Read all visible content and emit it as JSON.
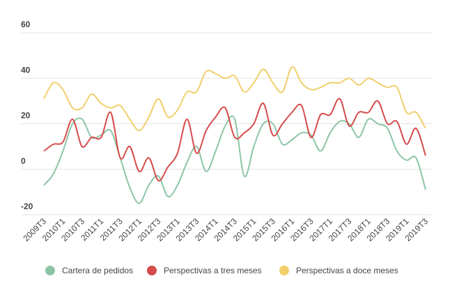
{
  "chart_data": {
    "type": "line",
    "categories": [
      "2009T3",
      null,
      "2010T1",
      null,
      "2010T3",
      null,
      "2011T1",
      null,
      "2011T3",
      null,
      "2012T1",
      null,
      "2012T3",
      null,
      "2013T1",
      null,
      "2013T3",
      null,
      "2014T1",
      null,
      "2014T3",
      null,
      "2015T1",
      null,
      "2015T3",
      null,
      "2016T1",
      null,
      "2016T3",
      null,
      "2017T1",
      null,
      "2017T3",
      null,
      "2018T1",
      null,
      "2018T3",
      null,
      "2019T1",
      null,
      "2019T3"
    ],
    "series": [
      {
        "name": "Cartera de pedidos",
        "color": "#8cc5a5",
        "values": [
          -7,
          -2,
          8,
          20,
          22,
          14,
          15,
          17,
          5,
          -8,
          -15,
          -7,
          -3,
          -12,
          -7,
          3,
          10,
          -1,
          8,
          19,
          22,
          -3,
          10,
          20,
          20,
          11,
          13,
          16,
          15,
          8,
          16,
          21,
          20,
          14,
          22,
          20,
          18,
          8,
          4,
          5,
          -9
        ]
      },
      {
        "name": "Perspectivas a tres meses",
        "color": "#d64b4b",
        "values": [
          8,
          11,
          12,
          22,
          10,
          14,
          14,
          25,
          5,
          10,
          -1,
          5,
          -5,
          1,
          7,
          22,
          7,
          17,
          23,
          27,
          14,
          16,
          20,
          29,
          15,
          20,
          25,
          28,
          14,
          24,
          24,
          31,
          19,
          25,
          25,
          30,
          20,
          21,
          11,
          18,
          6
        ]
      },
      {
        "name": "Perspectivas a doce meses",
        "color": "#f0cf6a",
        "values": [
          31,
          38,
          35,
          27,
          27,
          33,
          29,
          27,
          28,
          22,
          17,
          23,
          31,
          23,
          26,
          34,
          34,
          43,
          42,
          40,
          41,
          34,
          38,
          44,
          38,
          34,
          45,
          38,
          35,
          36,
          38,
          38,
          40,
          37,
          40,
          38,
          36,
          36,
          25,
          25,
          18
        ]
      }
    ],
    "ylim": [
      -20,
      60
    ],
    "yticks": [
      -20,
      0,
      20,
      40,
      60
    ],
    "grid": true
  }
}
